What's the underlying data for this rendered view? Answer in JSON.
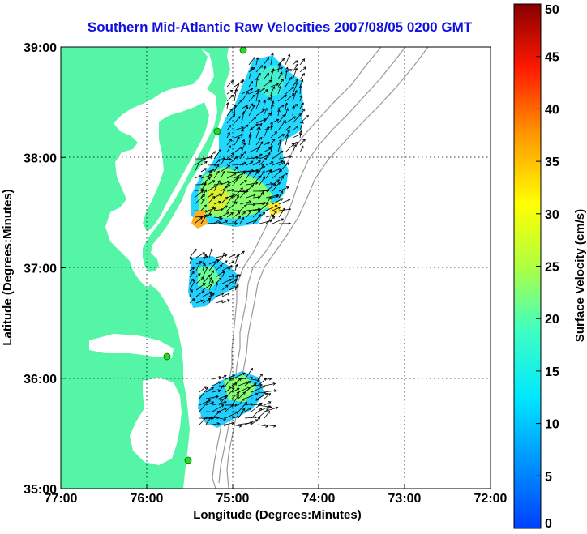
{
  "title": "Southern Mid-Atlantic Raw Velocities 2007/08/05 0200 GMT",
  "x_axis": {
    "label": "Longitude (Degrees:Minutes)",
    "ticks": [
      "77:00",
      "76:00",
      "75:00",
      "74:00",
      "73:00",
      "72:00"
    ]
  },
  "y_axis": {
    "label": "Latitude (Degrees:Minutes)",
    "ticks": [
      "39:00",
      "38:00",
      "37:00",
      "36:00",
      "35:00"
    ]
  },
  "colorbar": {
    "label": "Surface Velocity (cm/s)",
    "ticks": [
      "0",
      "5",
      "10",
      "15",
      "20",
      "25",
      "30",
      "35",
      "40",
      "45",
      "50"
    ],
    "range": [
      0,
      50
    ],
    "colormap": "jet"
  },
  "colors": {
    "land": "#55f5a8",
    "title": "#1010e0",
    "bathymetry": "#999999",
    "station_marker": "#22dd22"
  },
  "map": {
    "lon_range": [
      -77,
      -72
    ],
    "lat_range": [
      35,
      39
    ],
    "grid": "dotted"
  }
}
